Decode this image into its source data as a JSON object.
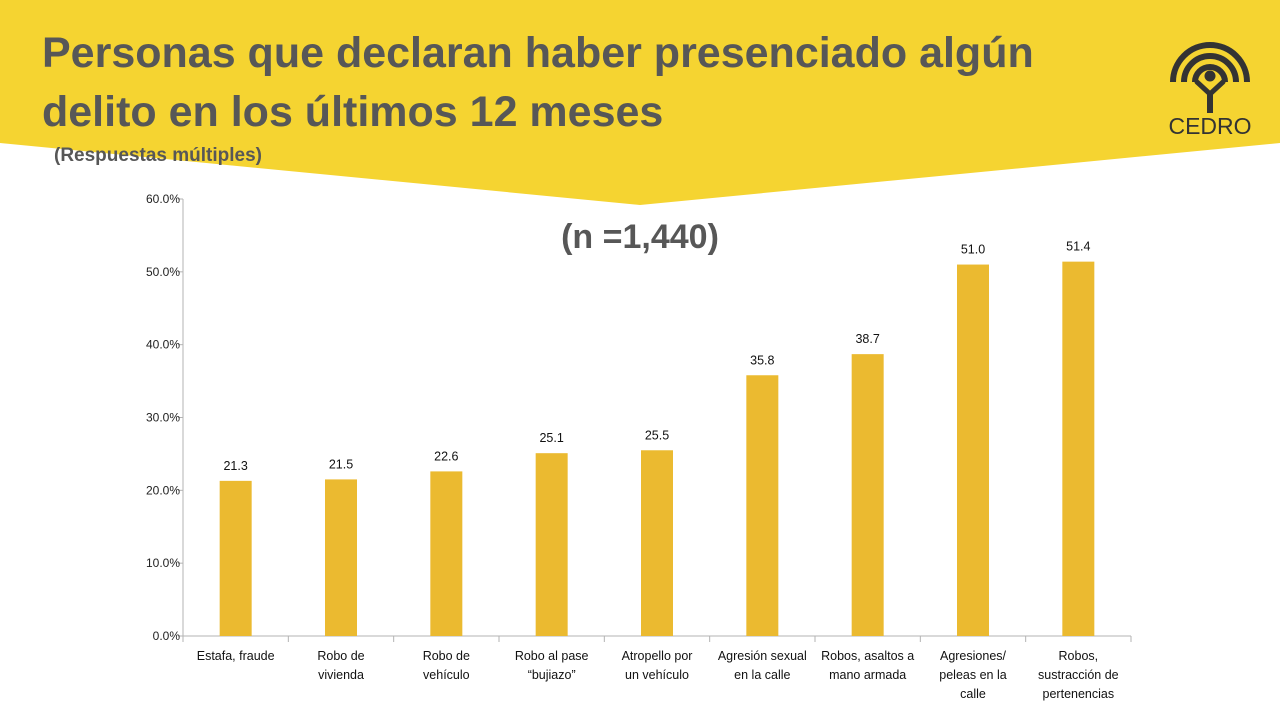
{
  "title": "Personas que declaran haber presenciado algún delito en los últimos 12 meses",
  "subtitle": "(Respuestas múltiples)",
  "logo": {
    "text": "CEDRO",
    "icon": "person-rainbow-icon"
  },
  "colors": {
    "banner": "#F5D431",
    "bar": "#EBBA30",
    "text": "#575757"
  },
  "chart_data": {
    "type": "bar",
    "annotation": "(n =1,440)",
    "categories": [
      [
        "Estafa, fraude"
      ],
      [
        "Robo de",
        "vivienda"
      ],
      [
        "Robo de",
        "vehículo"
      ],
      [
        "Robo al pase",
        "“bujiazo”"
      ],
      [
        "Atropello por",
        "un vehículo"
      ],
      [
        "Agresión sexual",
        "en la calle"
      ],
      [
        "Robos, asaltos a",
        "mano armada"
      ],
      [
        "Agresiones/",
        "peleas en la",
        "calle"
      ],
      [
        "Robos,",
        "sustracción de",
        "pertenencias"
      ]
    ],
    "values": [
      21.3,
      21.5,
      22.6,
      25.1,
      25.5,
      35.8,
      38.7,
      51.0,
      51.4
    ],
    "value_labels": [
      "21.3",
      "21.5",
      "22.6",
      "25.1",
      "25.5",
      "35.8",
      "38.7",
      "51.0",
      "51.4"
    ],
    "ylim": [
      0,
      60
    ],
    "yticks": [
      "0.0%",
      "10.0%",
      "20.0%",
      "30.0%",
      "40.0%",
      "50.0%",
      "60.0%"
    ],
    "grid": false,
    "legend": false
  }
}
